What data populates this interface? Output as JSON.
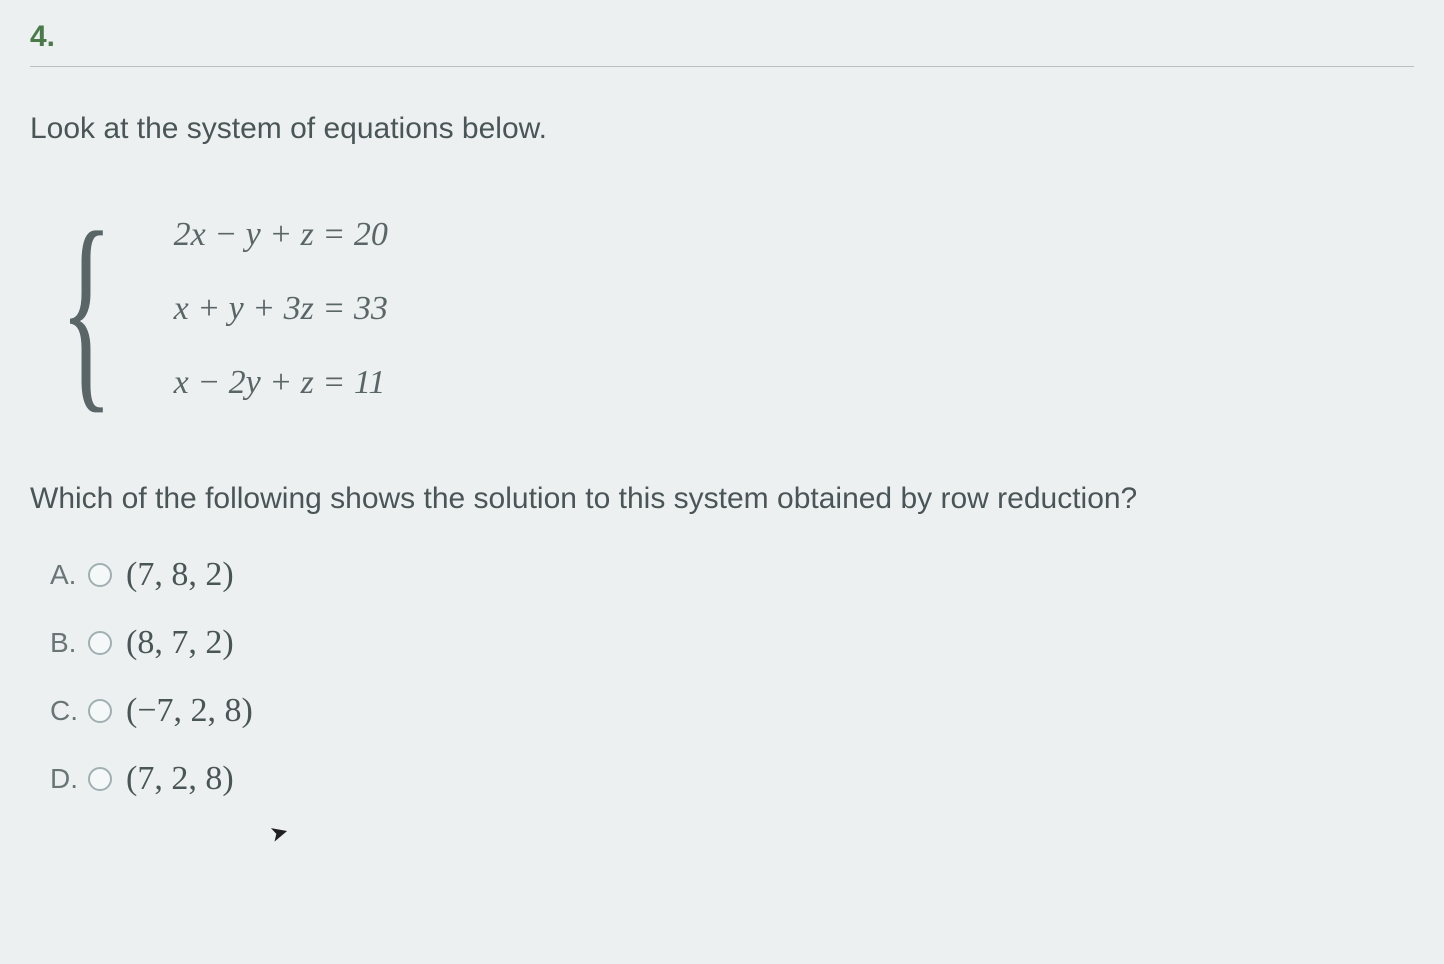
{
  "question_number": "4.",
  "prompt": "Look at the system of equations below.",
  "equations": {
    "eq1": "2x − y + z = 20",
    "eq2": "x + y + 3z = 33",
    "eq3": "x − 2y + z = 11"
  },
  "question_text": "Which of the following shows the solution to this system obtained by row reduction?",
  "options": [
    {
      "letter": "A.",
      "text": "(7, 8, 2)"
    },
    {
      "letter": "B.",
      "text": "(8, 7, 2)"
    },
    {
      "letter": "C.",
      "text": "(−7, 2, 8)"
    },
    {
      "letter": "D.",
      "text": "(7, 2, 8)"
    }
  ],
  "colors": {
    "background": "#edf0f0",
    "question_number": "#4a7a4a",
    "text": "#4a5558",
    "equation_text": "#5a6568",
    "divider": "#b8c0c2",
    "radio_border": "#a0b0b2"
  },
  "typography": {
    "body_font": "Arial, Helvetica, sans-serif",
    "math_font": "Times New Roman, serif",
    "prompt_size": 30,
    "equation_size": 34,
    "option_size": 34
  }
}
